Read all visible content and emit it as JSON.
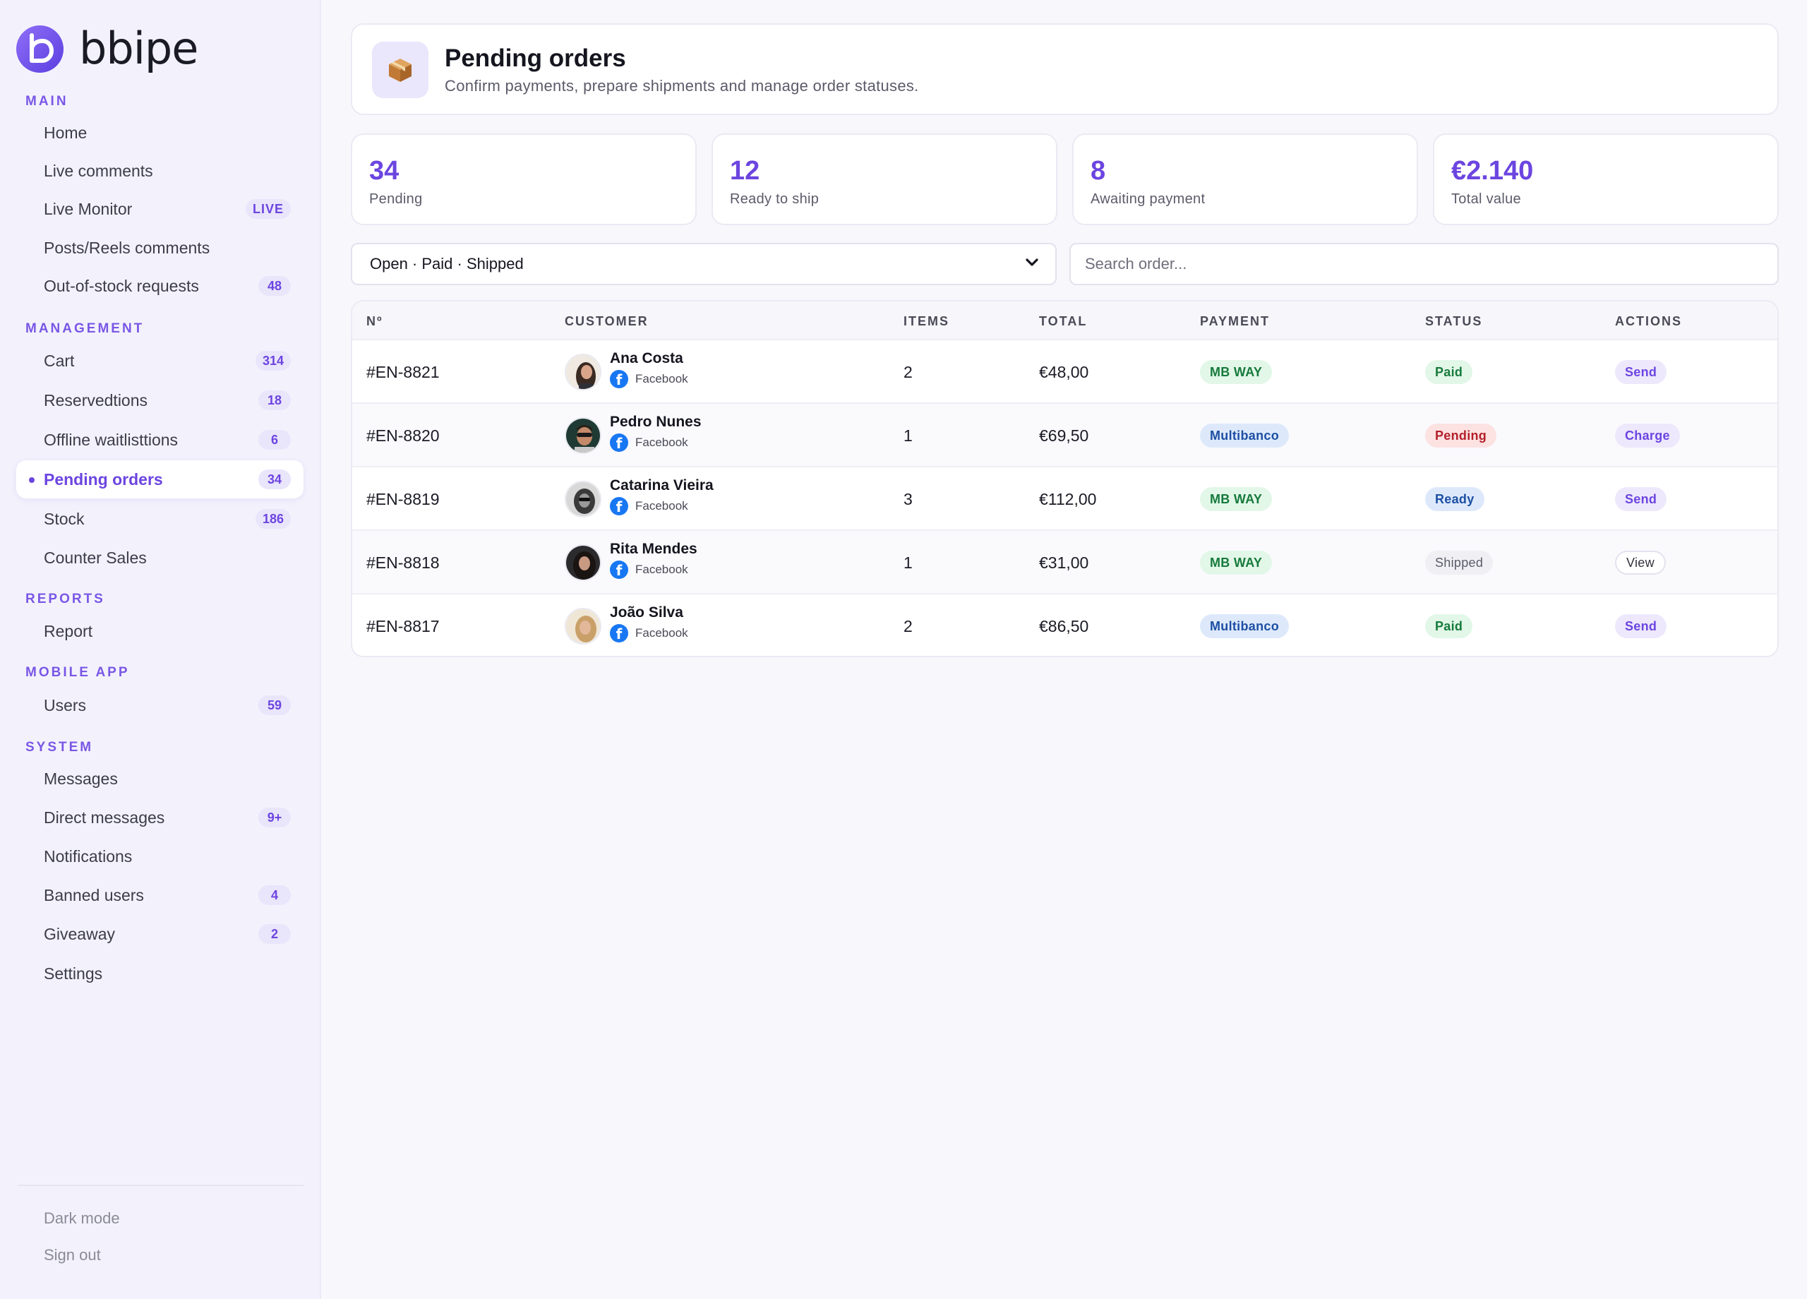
{
  "brand": {
    "name": "bbipe"
  },
  "sidebar": {
    "sections": {
      "main": "MAIN",
      "management": "MANAGEMENT",
      "reports": "REPORTS",
      "mobile_app": "MOBILE APP",
      "system": "SYSTEM"
    },
    "items": {
      "home": {
        "label": "Home"
      },
      "live_comments": {
        "label": "Live comments"
      },
      "live_monitor": {
        "label": "Live Monitor",
        "badge": "LIVE"
      },
      "posts_reels": {
        "label": "Posts/Reels comments"
      },
      "out_of_stock": {
        "label": "Out-of-stock requests",
        "badge": "48"
      },
      "cart": {
        "label": "Cart",
        "badge": "314"
      },
      "reservations": {
        "label": "Reservedtions",
        "badge": "18"
      },
      "offline_waitlists": {
        "label": "Offline waitlisttions",
        "badge": "6"
      },
      "pending_orders": {
        "label": "Pending orders",
        "badge": "34"
      },
      "stock": {
        "label": "Stock",
        "badge": "186"
      },
      "counter_sales": {
        "label": "Counter Sales"
      },
      "report": {
        "label": "Report"
      },
      "users": {
        "label": "Users",
        "badge": "59"
      },
      "messages": {
        "label": "Messages"
      },
      "direct_messages": {
        "label": "Direct messages",
        "badge": "9+"
      },
      "notifications": {
        "label": "Notifications"
      },
      "banned_users": {
        "label": "Banned users",
        "badge": "4"
      },
      "giveaway": {
        "label": "Giveaway",
        "badge": "2"
      },
      "settings": {
        "label": "Settings"
      }
    },
    "footer": {
      "dark_mode": "Dark mode",
      "sign_out": "Sign out"
    }
  },
  "header": {
    "icon": "package-icon",
    "title": "Pending orders",
    "subtitle": "Confirm payments, prepare shipments and manage order statuses."
  },
  "stats": [
    {
      "value": "34",
      "label": "Pending"
    },
    {
      "value": "12",
      "label": "Ready to ship"
    },
    {
      "value": "8",
      "label": "Awaiting payment"
    },
    {
      "value": "€2.140",
      "label": "Total value"
    }
  ],
  "filter": {
    "value": "Open · Paid · Shipped"
  },
  "search": {
    "placeholder": "Search order..."
  },
  "table": {
    "columns": {
      "number": "Nº",
      "customer": "CUSTOMER",
      "items": "ITEMS",
      "total": "TOTAL",
      "payment": "PAYMENT",
      "status": "STATUS",
      "actions": "ACTIONS"
    },
    "rows": [
      {
        "number": "#EN-8821",
        "name": "Ana Costa",
        "source": "Facebook",
        "items": "2",
        "total": "€48,00",
        "payment": "MB WAY",
        "status": "Paid",
        "action": "Send"
      },
      {
        "number": "#EN-8820",
        "name": "Pedro Nunes",
        "source": "Facebook",
        "items": "1",
        "total": "€69,50",
        "payment": "Multibanco",
        "status": "Pending",
        "action": "Charge"
      },
      {
        "number": "#EN-8819",
        "name": "Catarina Vieira",
        "source": "Facebook",
        "items": "3",
        "total": "€112,00",
        "payment": "MB WAY",
        "status": "Ready",
        "action": "Send"
      },
      {
        "number": "#EN-8818",
        "name": "Rita Mendes",
        "source": "Facebook",
        "items": "1",
        "total": "€31,00",
        "payment": "MB WAY",
        "status": "Shipped",
        "action": "View"
      },
      {
        "number": "#EN-8817",
        "name": "João Silva",
        "source": "Facebook",
        "items": "2",
        "total": "€86,50",
        "payment": "Multibanco",
        "status": "Paid",
        "action": "Send"
      }
    ]
  },
  "colors": {
    "accent": "#6c45e0",
    "sidebar_bg": "#f3f2fc",
    "page_bg": "#f7f7fc",
    "paid_green": "#177a3c",
    "multibanco_blue": "#1d4fa3",
    "pending_red": "#b3202a"
  }
}
